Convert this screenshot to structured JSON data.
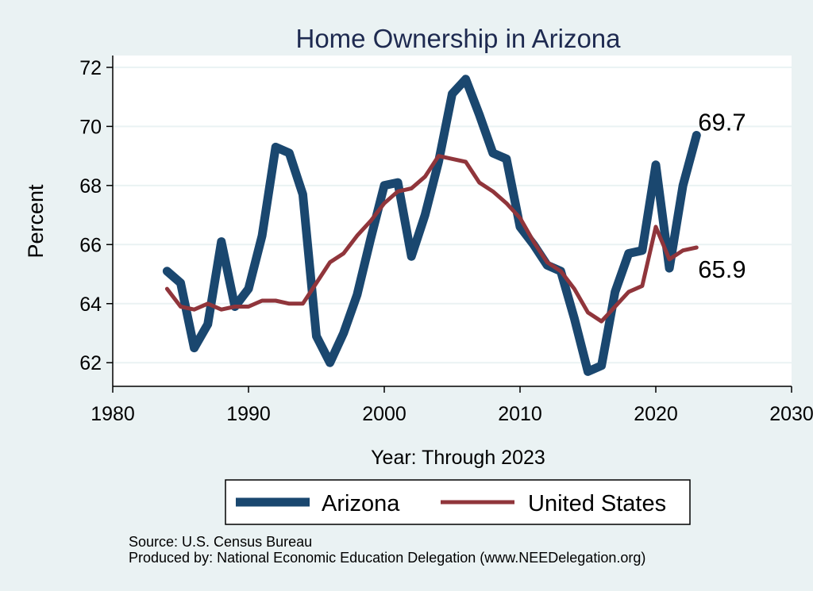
{
  "chart_data": {
    "type": "line",
    "title": "Home Ownership in Arizona",
    "xlabel": "Year: Through 2023",
    "ylabel": "Percent",
    "xlim": [
      1980,
      2030
    ],
    "ylim": [
      61.2,
      72.4
    ],
    "x_ticks": [
      1980,
      1990,
      2000,
      2010,
      2020,
      2030
    ],
    "y_ticks": [
      62,
      64,
      66,
      68,
      70,
      72
    ],
    "grid": true,
    "legend_position": "bottom",
    "x": [
      1984,
      1985,
      1986,
      1987,
      1988,
      1989,
      1990,
      1991,
      1992,
      1993,
      1994,
      1995,
      1996,
      1997,
      1998,
      1999,
      2000,
      2001,
      2002,
      2003,
      2004,
      2005,
      2006,
      2007,
      2008,
      2009,
      2010,
      2011,
      2012,
      2013,
      2014,
      2015,
      2016,
      2017,
      2018,
      2019,
      2020,
      2021,
      2022,
      2023
    ],
    "series": [
      {
        "name": "Arizona",
        "color": "#1a476f",
        "values": [
          65.1,
          64.7,
          62.5,
          63.3,
          66.1,
          63.9,
          64.5,
          66.3,
          69.3,
          69.1,
          67.7,
          62.9,
          62.0,
          63.0,
          64.3,
          66.2,
          68.0,
          68.1,
          65.6,
          67.0,
          68.8,
          71.1,
          71.6,
          70.4,
          69.1,
          68.9,
          66.6,
          66.0,
          65.3,
          65.1,
          63.5,
          61.7,
          61.9,
          64.4,
          65.7,
          65.8,
          68.7,
          65.2,
          68.0,
          69.7
        ],
        "end_label": "69.7"
      },
      {
        "name": "United States",
        "color": "#90353b",
        "values": [
          64.5,
          63.9,
          63.8,
          64.0,
          63.8,
          63.9,
          63.9,
          64.1,
          64.1,
          64.0,
          64.0,
          64.7,
          65.4,
          65.7,
          66.3,
          66.8,
          67.4,
          67.8,
          67.9,
          68.3,
          69.0,
          68.9,
          68.8,
          68.1,
          67.8,
          67.4,
          66.9,
          66.1,
          65.4,
          65.1,
          64.5,
          63.7,
          63.4,
          63.9,
          64.4,
          64.6,
          66.6,
          65.5,
          65.8,
          65.9
        ],
        "end_label": "65.9"
      }
    ]
  },
  "footer": {
    "source": "Source: U.S. Census Bureau",
    "produced": "Produced by: National Economic Education Delegation (www.NEEDelegation.org)"
  }
}
